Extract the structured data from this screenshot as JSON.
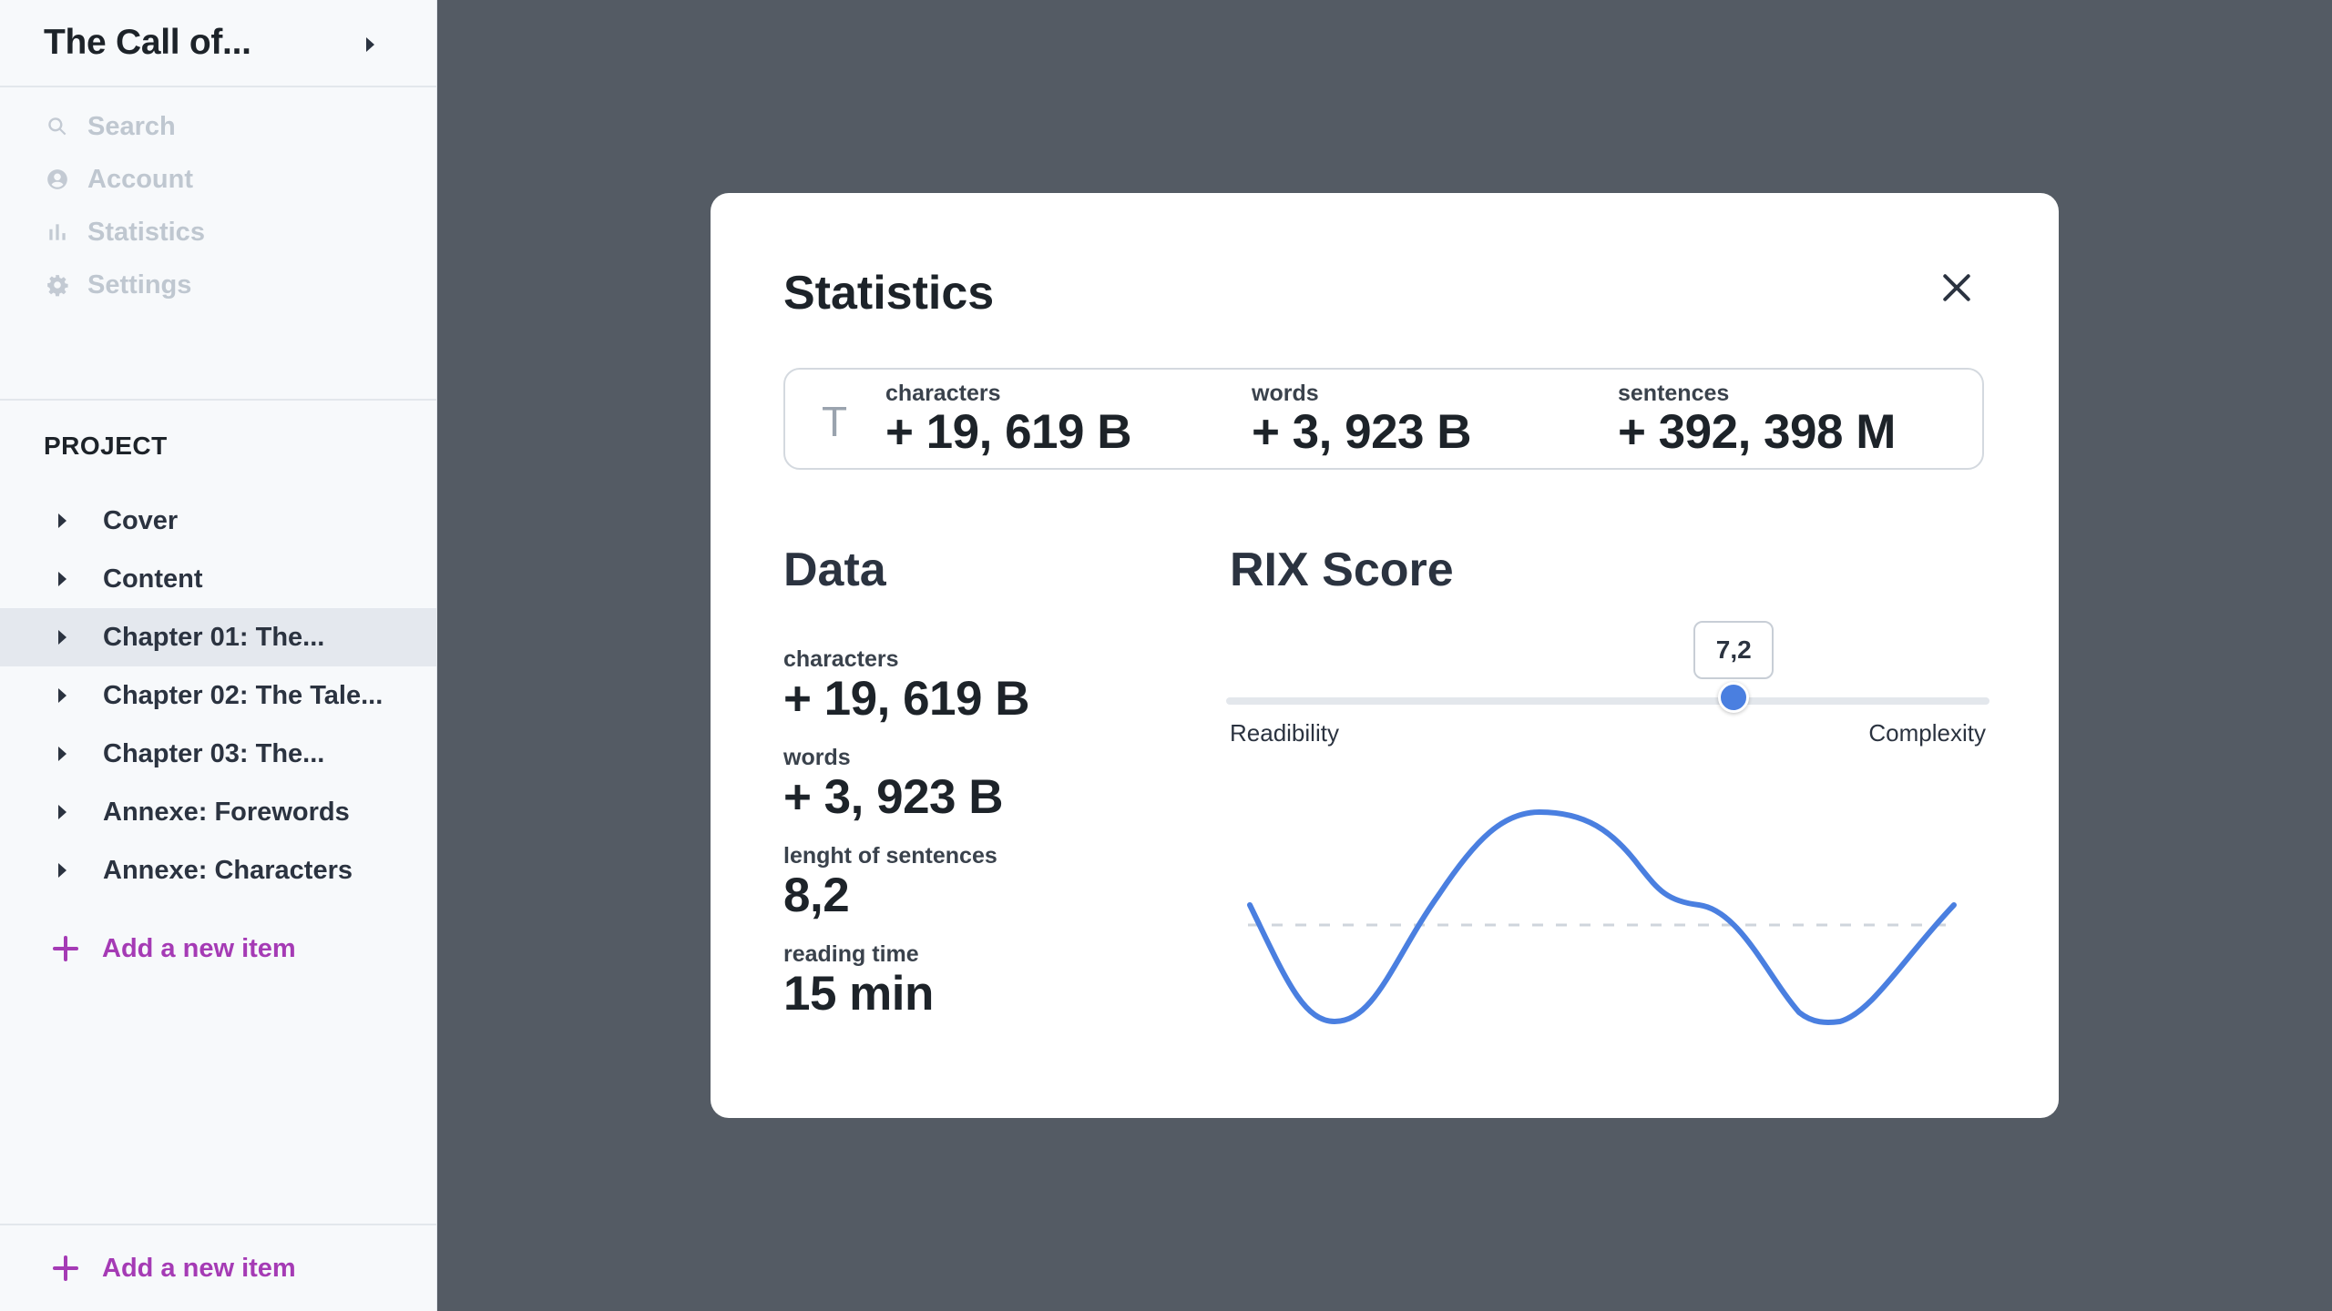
{
  "sidebar": {
    "title": "The Call of...",
    "nav": [
      {
        "label": "Search",
        "icon": "search-icon"
      },
      {
        "label": "Account",
        "icon": "account-icon"
      },
      {
        "label": "Statistics",
        "icon": "bar-chart-icon"
      },
      {
        "label": "Settings",
        "icon": "gear-icon"
      }
    ],
    "section_label": "PROJECT",
    "items": [
      {
        "label": "Cover"
      },
      {
        "label": "Content"
      },
      {
        "label": "Chapter 01: The...",
        "active": true
      },
      {
        "label": "Chapter 02: The Tale..."
      },
      {
        "label": "Chapter 03: The..."
      },
      {
        "label": "Annexe: Forewords"
      },
      {
        "label": "Annexe: Characters"
      }
    ],
    "add_item_label": "Add a new item",
    "footer_add_label": "Add a new item"
  },
  "modal": {
    "title": "Statistics",
    "summary_icon": "T",
    "summary": [
      {
        "label": "characters",
        "value": "+ 19, 619 B"
      },
      {
        "label": "words",
        "value": "+ 3, 923 B"
      },
      {
        "label": "sentences",
        "value": "+ 392, 398 M"
      }
    ],
    "data_title": "Data",
    "data": [
      {
        "label": "characters",
        "value": "+ 19, 619 B"
      },
      {
        "label": "words",
        "value": "+ 3, 923 B"
      },
      {
        "label": "lenght of sentences",
        "value": "8,2"
      },
      {
        "label": "reading time",
        "value": "15 min"
      }
    ],
    "rix": {
      "title": "RIX Score",
      "value_label": "7,2",
      "slider_fraction": 0.665,
      "min_label": "Readibility",
      "max_label": "Complexity",
      "accent_color": "#4a7fe0"
    }
  }
}
